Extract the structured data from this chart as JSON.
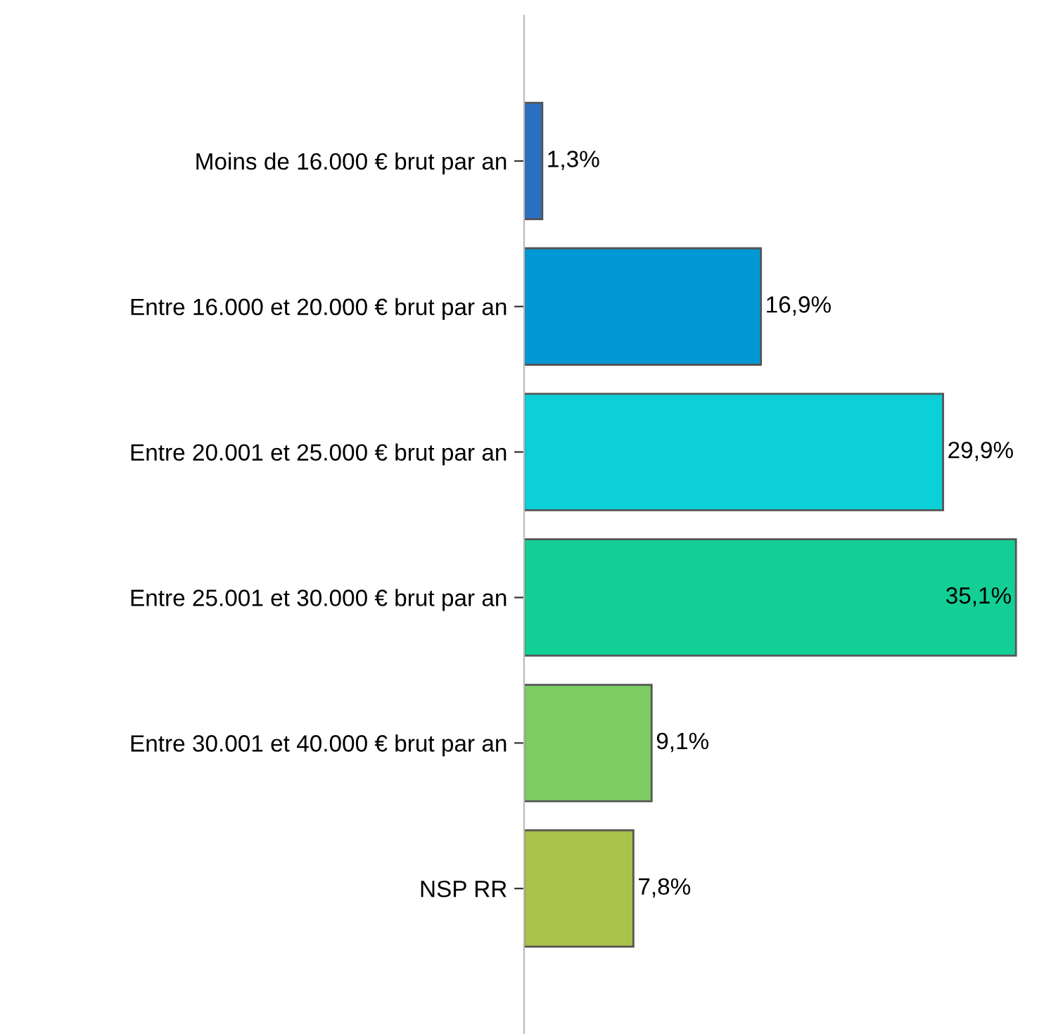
{
  "chart_data": {
    "type": "bar",
    "orientation": "horizontal",
    "categories": [
      "Moins de 16.000 € brut par an",
      "Entre 16.000 et 20.000 € brut par an",
      "Entre 20.001 et 25.000 € brut par an",
      "Entre 25.001 et 30.000 € brut par an",
      "Entre 30.001 et 40.000 € brut par an",
      "NSP RR"
    ],
    "values": [
      1.3,
      16.9,
      29.9,
      35.1,
      9.1,
      7.8
    ],
    "value_labels": [
      "1,3%",
      "16,9%",
      "29,9%",
      "35,1%",
      "9,1%",
      "7,8%"
    ],
    "colors": [
      "#2a6fc0",
      "#0099d6",
      "#0dcfd8",
      "#14cf95",
      "#7dcc62",
      "#a8c24a"
    ],
    "grid": false,
    "legend": false
  }
}
